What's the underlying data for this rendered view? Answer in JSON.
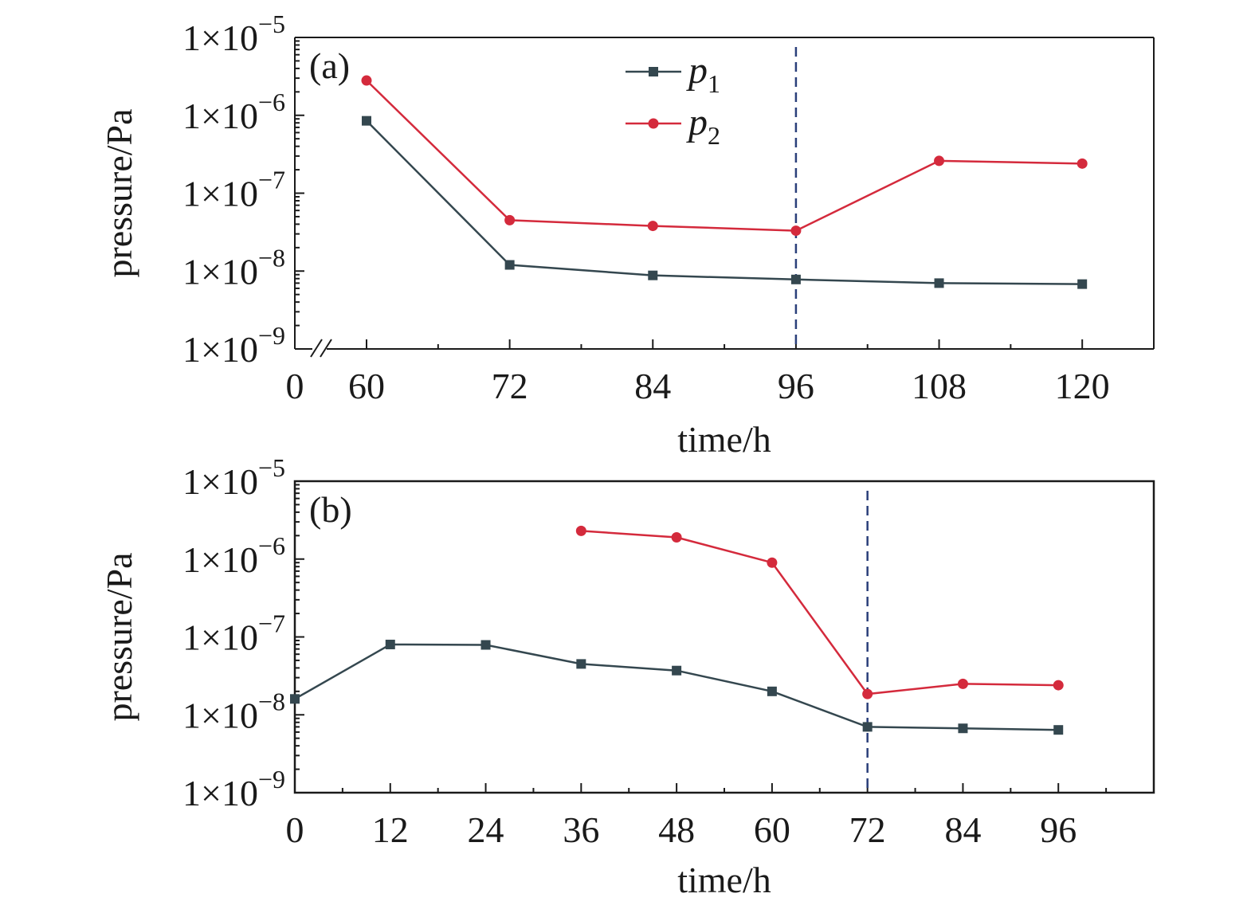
{
  "chart_data": [
    {
      "type": "line",
      "panel_label": "(a)",
      "xlabel": "time/h",
      "ylabel": "pressure/Pa",
      "y_scale": "log",
      "ylim": [
        1e-09,
        1e-05
      ],
      "xlim": [
        60,
        126
      ],
      "x_break": true,
      "x_origin_label": "0",
      "x_ticks": [
        60,
        72,
        84,
        96,
        108,
        120
      ],
      "y_ticks": [
        {
          "mantissa": "1×10",
          "exponent": "−5"
        },
        {
          "mantissa": "1×10",
          "exponent": "−6"
        },
        {
          "mantissa": "1×10",
          "exponent": "−7"
        },
        {
          "mantissa": "1×10",
          "exponent": "−8"
        },
        {
          "mantissa": "1×10",
          "exponent": "−9"
        }
      ],
      "vline_x": 96,
      "legend": {
        "placement": "top-center"
      },
      "series": [
        {
          "name": "p",
          "subscript": "1",
          "marker": "square",
          "color": "#34474f",
          "x": [
            60,
            72,
            84,
            96,
            108,
            120
          ],
          "y": [
            8.5e-07,
            1.2e-08,
            8.8e-09,
            7.8e-09,
            7e-09,
            6.8e-09
          ]
        },
        {
          "name": "p",
          "subscript": "2",
          "marker": "circle",
          "color": "#d42a3c",
          "x": [
            60,
            72,
            84,
            96,
            108,
            120
          ],
          "y": [
            2.8e-06,
            4.5e-08,
            3.8e-08,
            3.3e-08,
            2.6e-07,
            2.4e-07
          ]
        }
      ]
    },
    {
      "type": "line",
      "panel_label": "(b)",
      "xlabel": "time/h",
      "ylabel": "pressure/Pa",
      "y_scale": "log",
      "ylim": [
        1e-09,
        1e-05
      ],
      "xlim": [
        0,
        108
      ],
      "x_ticks": [
        0,
        12,
        24,
        36,
        48,
        60,
        72,
        84,
        96
      ],
      "y_ticks": [
        {
          "mantissa": "1×10",
          "exponent": "−5"
        },
        {
          "mantissa": "1×10",
          "exponent": "−6"
        },
        {
          "mantissa": "1×10",
          "exponent": "−7"
        },
        {
          "mantissa": "1×10",
          "exponent": "−8"
        },
        {
          "mantissa": "1×10",
          "exponent": "−9"
        }
      ],
      "vline_x": 72,
      "series": [
        {
          "marker": "square",
          "color": "#34474f",
          "x": [
            0,
            12,
            24,
            36,
            48,
            60,
            72,
            84,
            96
          ],
          "y": [
            1.6e-08,
            8e-08,
            7.9e-08,
            4.5e-08,
            3.7e-08,
            2e-08,
            7e-09,
            6.7e-09,
            6.4e-09
          ]
        },
        {
          "marker": "circle",
          "color": "#d42a3c",
          "x": [
            36,
            48,
            60,
            72,
            84,
            96
          ],
          "y": [
            2.3e-06,
            1.9e-06,
            9e-07,
            1.85e-08,
            2.5e-08,
            2.4e-08
          ]
        }
      ]
    }
  ],
  "colors": {
    "vline": "#2a3f7a",
    "frame": "#1a1a1a"
  }
}
